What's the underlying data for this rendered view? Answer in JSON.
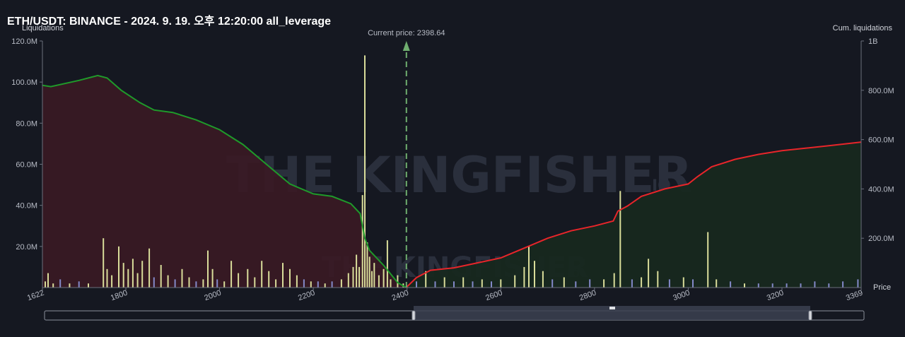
{
  "title": "ETH/USDT: BINANCE - 2024. 9. 19. 오후 12:20:00 all_leverage",
  "watermark": {
    "brand": "THE KINGFISHER",
    "suffix": "IO"
  },
  "colors": {
    "background": "#151821",
    "short_line": "#1f9a2a",
    "long_line": "#e8252a",
    "short_fill": "#3a1a24",
    "long_fill": "#17281f",
    "bar_yellow": "#d9dd9a",
    "bar_blue": "#8389c9",
    "current_price": "#6fae6f"
  },
  "chart_data": {
    "type": "bar+line",
    "left_axis": {
      "label": "Liquidations",
      "ylim": [
        0,
        120000000
      ],
      "ticks": [
        "20.0M",
        "40.0M",
        "60.0M",
        "80.0M",
        "100.0M",
        "120.0M"
      ],
      "tick_values": [
        20000000,
        40000000,
        60000000,
        80000000,
        100000000,
        120000000
      ]
    },
    "right_axis": {
      "label": "Cum. liquidations",
      "ylim": [
        0,
        1000000000
      ],
      "ticks": [
        "200.0M",
        "400.0M",
        "600.0M",
        "800.0M",
        "1B"
      ],
      "tick_values": [
        200000000,
        400000000,
        600000000,
        800000000,
        1000000000
      ]
    },
    "x_axis": {
      "label": "Price",
      "xlim": [
        1622,
        3369
      ],
      "ticks": [
        "1622",
        "1800",
        "2000",
        "2200",
        "2400",
        "2600",
        "2800",
        "3000",
        "3200",
        "3369"
      ],
      "tick_values": [
        1622,
        1800,
        2000,
        2200,
        2400,
        2600,
        2800,
        3000,
        3200,
        3369
      ]
    },
    "current_price": {
      "label": "Current price: 2398.64",
      "value": 2398.64
    },
    "cum_short_side": {
      "name": "",
      "points": [
        [
          1622,
          820000000
        ],
        [
          1640,
          815000000
        ],
        [
          1700,
          840000000
        ],
        [
          1740,
          860000000
        ],
        [
          1760,
          850000000
        ],
        [
          1790,
          800000000
        ],
        [
          1830,
          750000000
        ],
        [
          1860,
          720000000
        ],
        [
          1900,
          710000000
        ],
        [
          1950,
          680000000
        ],
        [
          2000,
          640000000
        ],
        [
          2050,
          580000000
        ],
        [
          2100,
          500000000
        ],
        [
          2150,
          420000000
        ],
        [
          2200,
          380000000
        ],
        [
          2240,
          370000000
        ],
        [
          2280,
          340000000
        ],
        [
          2300,
          300000000
        ],
        [
          2310,
          200000000
        ],
        [
          2320,
          150000000
        ],
        [
          2350,
          90000000
        ],
        [
          2380,
          20000000
        ],
        [
          2398,
          0
        ]
      ]
    },
    "cum_long_side": {
      "name": "",
      "points": [
        [
          2398,
          0
        ],
        [
          2420,
          40000000
        ],
        [
          2450,
          70000000
        ],
        [
          2500,
          80000000
        ],
        [
          2550,
          100000000
        ],
        [
          2600,
          120000000
        ],
        [
          2650,
          160000000
        ],
        [
          2700,
          200000000
        ],
        [
          2750,
          230000000
        ],
        [
          2800,
          250000000
        ],
        [
          2840,
          270000000
        ],
        [
          2850,
          310000000
        ],
        [
          2870,
          330000000
        ],
        [
          2900,
          370000000
        ],
        [
          2950,
          400000000
        ],
        [
          3000,
          420000000
        ],
        [
          3020,
          450000000
        ],
        [
          3050,
          490000000
        ],
        [
          3100,
          520000000
        ],
        [
          3150,
          540000000
        ],
        [
          3200,
          555000000
        ],
        [
          3250,
          565000000
        ],
        [
          3300,
          575000000
        ],
        [
          3369,
          590000000
        ]
      ]
    },
    "liquidation_bars": [
      [
        1628,
        3000000,
        "yellow"
      ],
      [
        1634,
        7000000,
        "yellow"
      ],
      [
        1645,
        2000000,
        "yellow"
      ],
      [
        1660,
        4000000,
        "blue"
      ],
      [
        1680,
        2000000,
        "yellow"
      ],
      [
        1700,
        3000000,
        "blue"
      ],
      [
        1720,
        2000000,
        "yellow"
      ],
      [
        1752,
        24000000,
        "yellow"
      ],
      [
        1760,
        9000000,
        "yellow"
      ],
      [
        1770,
        6000000,
        "yellow"
      ],
      [
        1785,
        20000000,
        "yellow"
      ],
      [
        1795,
        12000000,
        "yellow"
      ],
      [
        1805,
        9000000,
        "yellow"
      ],
      [
        1815,
        14000000,
        "yellow"
      ],
      [
        1825,
        7000000,
        "yellow"
      ],
      [
        1835,
        13000000,
        "yellow"
      ],
      [
        1850,
        19000000,
        "yellow"
      ],
      [
        1860,
        5000000,
        "blue"
      ],
      [
        1875,
        11000000,
        "yellow"
      ],
      [
        1890,
        6000000,
        "yellow"
      ],
      [
        1905,
        4000000,
        "blue"
      ],
      [
        1920,
        9000000,
        "yellow"
      ],
      [
        1935,
        5000000,
        "yellow"
      ],
      [
        1950,
        3000000,
        "blue"
      ],
      [
        1965,
        4000000,
        "yellow"
      ],
      [
        1975,
        18000000,
        "yellow"
      ],
      [
        1985,
        9000000,
        "yellow"
      ],
      [
        1995,
        4000000,
        "blue"
      ],
      [
        2010,
        3000000,
        "yellow"
      ],
      [
        2025,
        13000000,
        "yellow"
      ],
      [
        2040,
        7000000,
        "yellow"
      ],
      [
        2060,
        9000000,
        "yellow"
      ],
      [
        2075,
        5000000,
        "yellow"
      ],
      [
        2090,
        13000000,
        "yellow"
      ],
      [
        2105,
        8000000,
        "yellow"
      ],
      [
        2120,
        4000000,
        "yellow"
      ],
      [
        2135,
        12000000,
        "yellow"
      ],
      [
        2150,
        9000000,
        "yellow"
      ],
      [
        2165,
        6000000,
        "yellow"
      ],
      [
        2180,
        4000000,
        "blue"
      ],
      [
        2195,
        3000000,
        "yellow"
      ],
      [
        2210,
        3000000,
        "blue"
      ],
      [
        2225,
        2000000,
        "yellow"
      ],
      [
        2240,
        3000000,
        "blue"
      ],
      [
        2260,
        4000000,
        "yellow"
      ],
      [
        2275,
        7000000,
        "yellow"
      ],
      [
        2285,
        10000000,
        "yellow"
      ],
      [
        2292,
        16000000,
        "yellow"
      ],
      [
        2298,
        10000000,
        "yellow"
      ],
      [
        2305,
        45000000,
        "yellow"
      ],
      [
        2310,
        113000000,
        "yellow"
      ],
      [
        2315,
        22000000,
        "yellow"
      ],
      [
        2320,
        15000000,
        "yellow"
      ],
      [
        2325,
        8000000,
        "yellow"
      ],
      [
        2330,
        12000000,
        "yellow"
      ],
      [
        2340,
        6000000,
        "yellow"
      ],
      [
        2350,
        9000000,
        "yellow"
      ],
      [
        2358,
        23000000,
        "yellow"
      ],
      [
        2365,
        4000000,
        "yellow"
      ],
      [
        2380,
        6000000,
        "yellow"
      ],
      [
        2392,
        2000000,
        "yellow"
      ],
      [
        2420,
        3000000,
        "blue"
      ],
      [
        2440,
        8000000,
        "yellow"
      ],
      [
        2460,
        3000000,
        "blue"
      ],
      [
        2480,
        5000000,
        "yellow"
      ],
      [
        2500,
        3000000,
        "blue"
      ],
      [
        2520,
        5000000,
        "yellow"
      ],
      [
        2540,
        3000000,
        "blue"
      ],
      [
        2560,
        4000000,
        "yellow"
      ],
      [
        2580,
        3000000,
        "blue"
      ],
      [
        2600,
        4000000,
        "yellow"
      ],
      [
        2630,
        6000000,
        "yellow"
      ],
      [
        2650,
        10000000,
        "yellow"
      ],
      [
        2660,
        20000000,
        "yellow"
      ],
      [
        2672,
        13000000,
        "yellow"
      ],
      [
        2690,
        8000000,
        "yellow"
      ],
      [
        2710,
        4000000,
        "blue"
      ],
      [
        2735,
        5000000,
        "yellow"
      ],
      [
        2760,
        3000000,
        "blue"
      ],
      [
        2790,
        4000000,
        "blue"
      ],
      [
        2820,
        4000000,
        "yellow"
      ],
      [
        2842,
        7000000,
        "yellow"
      ],
      [
        2855,
        47000000,
        "yellow"
      ],
      [
        2880,
        4000000,
        "blue"
      ],
      [
        2900,
        5000000,
        "yellow"
      ],
      [
        2915,
        14000000,
        "yellow"
      ],
      [
        2935,
        8000000,
        "yellow"
      ],
      [
        2960,
        4000000,
        "blue"
      ],
      [
        2990,
        5000000,
        "yellow"
      ],
      [
        3010,
        4000000,
        "blue"
      ],
      [
        3042,
        27000000,
        "yellow"
      ],
      [
        3060,
        4000000,
        "yellow"
      ],
      [
        3090,
        3000000,
        "blue"
      ],
      [
        3120,
        2000000,
        "yellow"
      ],
      [
        3150,
        2000000,
        "blue"
      ],
      [
        3180,
        2000000,
        "blue"
      ],
      [
        3210,
        2000000,
        "blue"
      ],
      [
        3240,
        2000000,
        "blue"
      ],
      [
        3270,
        3000000,
        "blue"
      ],
      [
        3300,
        2000000,
        "blue"
      ],
      [
        3330,
        3000000,
        "blue"
      ],
      [
        3362,
        4000000,
        "blue"
      ]
    ]
  }
}
